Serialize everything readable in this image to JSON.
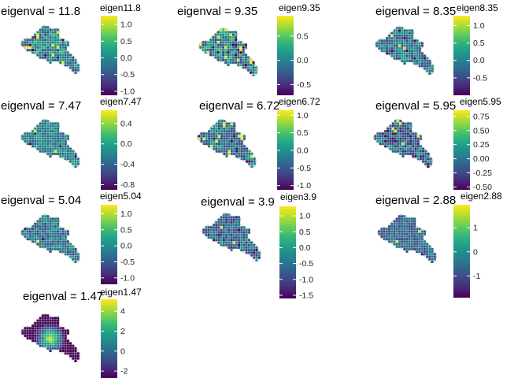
{
  "palette": [
    "#440154",
    "#482878",
    "#3e4a89",
    "#31688e",
    "#26828e",
    "#1f9e89",
    "#35b779",
    "#6ece58",
    "#b5de2b",
    "#fde725"
  ],
  "chart_data": [
    {
      "type": "choropleth",
      "title": "eigenval = 11.8",
      "legend_title": "eigen11.8",
      "range": [
        -1.12,
        1.26
      ],
      "ticks": [
        1.0,
        0.5,
        0.0,
        -0.5,
        -1.0
      ],
      "tick_labels": [
        "1.0",
        "0.5",
        "0.0",
        "-0.5",
        "-1.0"
      ],
      "legend": "right"
    },
    {
      "type": "choropleth",
      "title": "eigenval = 9.35",
      "legend_title": "eigen9.35",
      "range": [
        -0.72,
        0.92
      ],
      "ticks": [
        0.5,
        0.0,
        -0.5
      ],
      "tick_labels": [
        "0.5",
        "0.0",
        "-0.5"
      ],
      "legend": "right"
    },
    {
      "type": "choropleth",
      "title": "eigenval = 8.35",
      "legend_title": "eigen8.35",
      "range": [
        -1.0,
        1.28
      ],
      "ticks": [
        1.0,
        0.5,
        0.0,
        -0.5
      ],
      "tick_labels": [
        "1.0",
        "0.5",
        "0.0",
        "-0.5"
      ],
      "legend": "right"
    },
    {
      "type": "choropleth",
      "title": "eigenval = 7.47",
      "legend_title": "eigen7.47",
      "range": [
        -0.9,
        0.66
      ],
      "ticks": [
        0.4,
        0.0,
        -0.4,
        -0.8
      ],
      "tick_labels": [
        "0.4",
        "0.0",
        "-0.4",
        "-0.8"
      ],
      "legend": "right"
    },
    {
      "type": "choropleth",
      "title": "eigenval = 6.72",
      "legend_title": "eigen6.72",
      "range": [
        -1.12,
        1.14
      ],
      "ticks": [
        1.0,
        0.5,
        0.0,
        -0.5,
        -1.0
      ],
      "tick_labels": [
        "1.0",
        "0.5",
        "0.0",
        "-0.5",
        "-1.0"
      ],
      "legend": "right"
    },
    {
      "type": "choropleth",
      "title": "eigenval = 5.95",
      "legend_title": "eigen5.95",
      "range": [
        -0.55,
        0.86
      ],
      "ticks": [
        0.75,
        0.5,
        0.25,
        0.0,
        -0.25,
        -0.5
      ],
      "tick_labels": [
        "0.75",
        "0.50",
        "0.25",
        "0.00",
        "-0.25",
        "-0.50"
      ],
      "legend": "right"
    },
    {
      "type": "choropleth",
      "title": "eigenval = 5.04",
      "legend_title": "eigen5.04",
      "range": [
        -1.2,
        1.28
      ],
      "ticks": [
        1.0,
        0.5,
        0.0,
        -0.5,
        -1.0
      ],
      "tick_labels": [
        "1.0",
        "0.5",
        "0.0",
        "-0.5",
        "-1.0"
      ],
      "legend": "right"
    },
    {
      "type": "choropleth",
      "title": "eigenval = 3.9",
      "legend_title": "eigen3.9",
      "range": [
        -1.6,
        1.3
      ],
      "ticks": [
        1.0,
        0.5,
        0.0,
        -0.5,
        -1.0,
        -1.5
      ],
      "tick_labels": [
        "1.0",
        "0.5",
        "0.0",
        "-0.5",
        "-1.0",
        "-1.5"
      ],
      "legend": "right"
    },
    {
      "type": "choropleth",
      "title": "eigenval = 2.88",
      "legend_title": "eigen2.88",
      "range": [
        -1.9,
        1.95
      ],
      "ticks": [
        1,
        0,
        -1
      ],
      "tick_labels": [
        "1",
        "0",
        "-1"
      ],
      "legend": "right"
    },
    {
      "type": "choropleth",
      "title": "eigenval = 1.47",
      "legend_title": "eigen1.47",
      "range": [
        -2.7,
        5.2
      ],
      "ticks": [
        4,
        2,
        0,
        -2
      ],
      "tick_labels": [
        "4",
        "2",
        "0",
        "-2"
      ],
      "legend": "right"
    }
  ]
}
